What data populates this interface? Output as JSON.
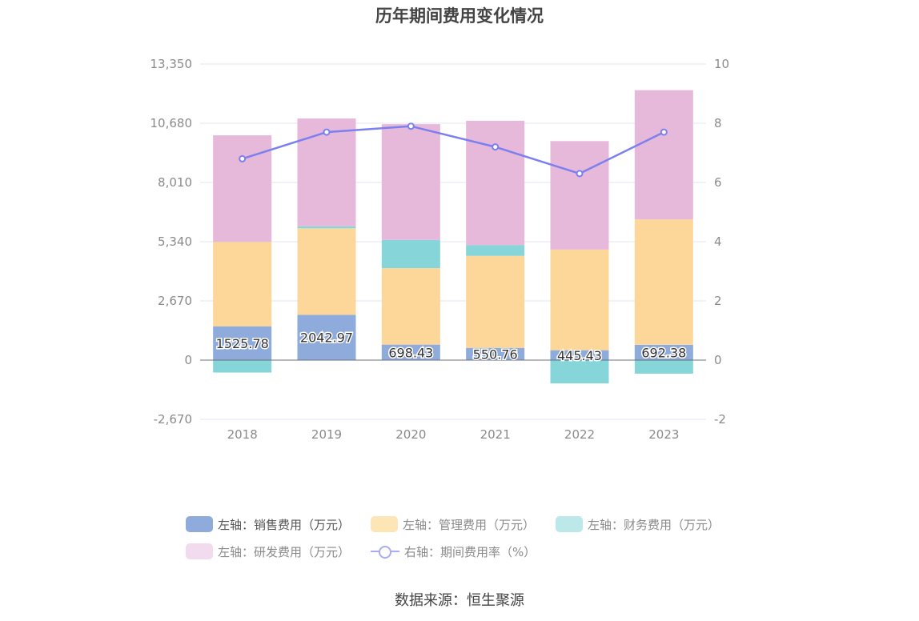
{
  "title": "历年期间费用变化情况",
  "source": "数据来源：恒生聚源",
  "legend": [
    {
      "label": "左轴：销售费用（万元）",
      "color": "#8eabdc",
      "dim": false
    },
    {
      "label": "左轴：管理费用（万元）",
      "color": "#fde5b5",
      "dim": true
    },
    {
      "label": "左轴：财务费用（万元）",
      "color": "#bde8ea",
      "dim": true
    },
    {
      "label": "左轴：研发费用（万元）",
      "color": "#f2dbee",
      "dim": true
    },
    {
      "label": "右轴：期间费用率（%）",
      "color": "#a9abf5",
      "dim": false
    }
  ],
  "chart_data": {
    "type": "bar",
    "stacked": true,
    "title": "历年期间费用变化情况",
    "categories": [
      "2018",
      "2019",
      "2020",
      "2021",
      "2022",
      "2023"
    ],
    "y_left": {
      "min": -2670,
      "max": 13350,
      "ticks": [
        -2670,
        0,
        2670,
        5340,
        8010,
        10680,
        13350
      ],
      "tick_labels": [
        "-2,670",
        "0",
        "2,670",
        "5,340",
        "8,010",
        "10,680",
        "13,350"
      ]
    },
    "y_right": {
      "min": -2,
      "max": 10,
      "ticks": [
        -2,
        0,
        2,
        4,
        6,
        8,
        10
      ],
      "tick_labels": [
        "-2",
        "0",
        "2",
        "4",
        "6",
        "8",
        "10"
      ]
    },
    "series": [
      {
        "name": "左轴：销售费用（万元）",
        "axis": "left",
        "color": "#8eabdc",
        "values": [
          1525.78,
          2042.97,
          698.43,
          550.76,
          445.43,
          692.38
        ],
        "labels": [
          "1525.78",
          "2042.97",
          "698.43",
          "550.76",
          "445.43",
          "692.38"
        ]
      },
      {
        "name": "左轴：管理费用（万元）",
        "axis": "left",
        "color": "#fdd79a",
        "values": [
          3800,
          3900,
          3450,
          4150,
          4540,
          5650
        ]
      },
      {
        "name": "左轴：财务费用（万元）",
        "axis": "left",
        "color": "#85d5d9",
        "values": [
          -560,
          90,
          1270,
          480,
          -1050,
          -610
        ]
      },
      {
        "name": "左轴：研发费用（万元）",
        "axis": "left",
        "color": "#e6b8da",
        "values": [
          4810,
          4860,
          5220,
          5610,
          4890,
          5830
        ]
      },
      {
        "name": "右轴：期间费用率（%）",
        "axis": "right",
        "type": "line",
        "color": "#7b80ee",
        "values": [
          6.8,
          7.7,
          7.9,
          7.2,
          6.3,
          7.7
        ]
      }
    ]
  }
}
